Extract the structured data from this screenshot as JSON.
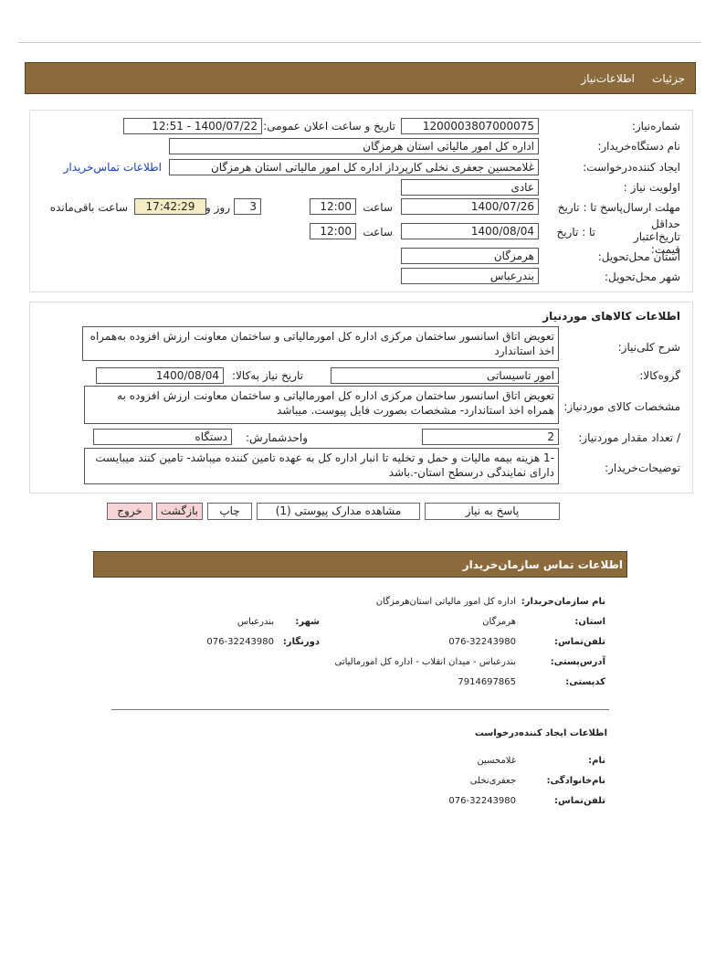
{
  "header": {
    "tabs": [
      "جزئیات",
      "اطلاعات‌نیاز"
    ]
  },
  "need_info": {
    "need_number": {
      "label": "شماره‌نیاز:",
      "value": "1200003807000075"
    },
    "announce": {
      "label": "تاریخ و ساعت اعلان عمومی:",
      "value": "1400/07/22 - 12:51"
    },
    "buyer_org": {
      "label": "نام دستگاه‌خریدار:",
      "value": "اداره کل امور مالیاتی استان هرمزگان"
    },
    "creator": {
      "label": "ایجاد کننده‌درخواست:",
      "value": "غلامحسین جعفری نخلی کارپرداز اداره کل امور مالیاتی استان هرمزگان",
      "link": "اطلاعات تماس‌خریدار"
    },
    "priority": {
      "label": "اولویت نیاز :",
      "value": "عادی"
    },
    "deadline": {
      "label": "مهلت ارسال‌پاسخ  تا : تاریخ",
      "date": "1400/07/26",
      "time_label": "ساعت",
      "time": "12:00",
      "days": "3",
      "days_label": "روز و",
      "remaining": "17:42:29",
      "remaining_label": "ساعت باقی‌مانده"
    },
    "validity": {
      "label": "حداقل تاریخ‌اعتبار قیمت:",
      "to_label": "تا : تاریخ",
      "date": "1400/08/04",
      "time_label": "ساعت",
      "time": "12:00"
    },
    "province": {
      "label": "استان محل‌تحویل:",
      "value": "هرمزگان"
    },
    "city": {
      "label": "شهر محل‌تحویل:",
      "value": "بندرعباس"
    }
  },
  "goods": {
    "title": "اطلاعات کالاهای موردنیاز",
    "description": {
      "label": "شرح کلی‌نیاز:",
      "value": "تعویض اتاق اسانسور ساختمان مرکزی اداره کل  امورمالیاتی و ساختمان معاونت ارزش افزوده به‌همراه اخذ استاندارد"
    },
    "group": {
      "label": "گروه‌کالا:",
      "value": "امور تاسیساتی"
    },
    "need_date": {
      "label": "تاریخ نیاز به‌کالا:",
      "value": "1400/08/04"
    },
    "specs": {
      "label": "مشخصات کالای مورد‌نیاز:",
      "value": "تعویض اتاق اسانسور ساختمان مرکزی اداره کل  امورمالیاتی و ساختمان معاونت ارزش افزوده به همراه اخذ استاندارد- مشخصات بصورت فایل پیوست. میباشد"
    },
    "quantity": {
      "label": "/ تعداد مقدار مورد‌نیاز:",
      "value": "2"
    },
    "unit": {
      "label": "واحد‌شمارش:",
      "value": "دستگاه"
    },
    "notes": {
      "label": "توضیحات‌خریدار:",
      "value": "-1 هزینه بیمه مالیات و حمل و تخلیه تا انبار اداره  کل به عهده تامین کننده میباشد- تامین کنند میبایست دارای نمایندگی درسطح استان-.باشد"
    }
  },
  "buttons": [
    "پاسخ به نیاز",
    "مشاهده مدارک پیوستی (1)",
    "چاپ",
    "بازگشت",
    "خروج"
  ],
  "contact": {
    "title": "اطلاعات  تماس سازمان‌خریدار",
    "org": {
      "label": "نام سازمان‌خریدار:",
      "value": "اداره کل امور مالیاتی استان‌هرمزگان"
    },
    "province": {
      "label": "استان:",
      "value": "هرمزگان"
    },
    "city": {
      "label": "شهر:",
      "value": "بندرعباس"
    },
    "phone": {
      "label": "تلفن‌تماس:",
      "value": "076-32243980"
    },
    "fax": {
      "label": "دورنگار:",
      "value": "076-32243980"
    },
    "address": {
      "label": "آدرس‌پستی:",
      "value": "بندرعباس - میدان انقلاب - اداره کل امورمالیاتی"
    },
    "postal_code": {
      "label": "کدپستی:",
      "value": "7914697865"
    }
  },
  "creator": {
    "title": "اطلاعات ایجاد کننده‌درخواست",
    "first_name": {
      "label": "نام:",
      "value": "غلامحسین"
    },
    "last_name": {
      "label": "نام‌خانوادگی:",
      "value": "جعفری‌نخلی"
    },
    "phone": {
      "label": "تلفن‌تماس:",
      "value": "076-32243980"
    }
  }
}
